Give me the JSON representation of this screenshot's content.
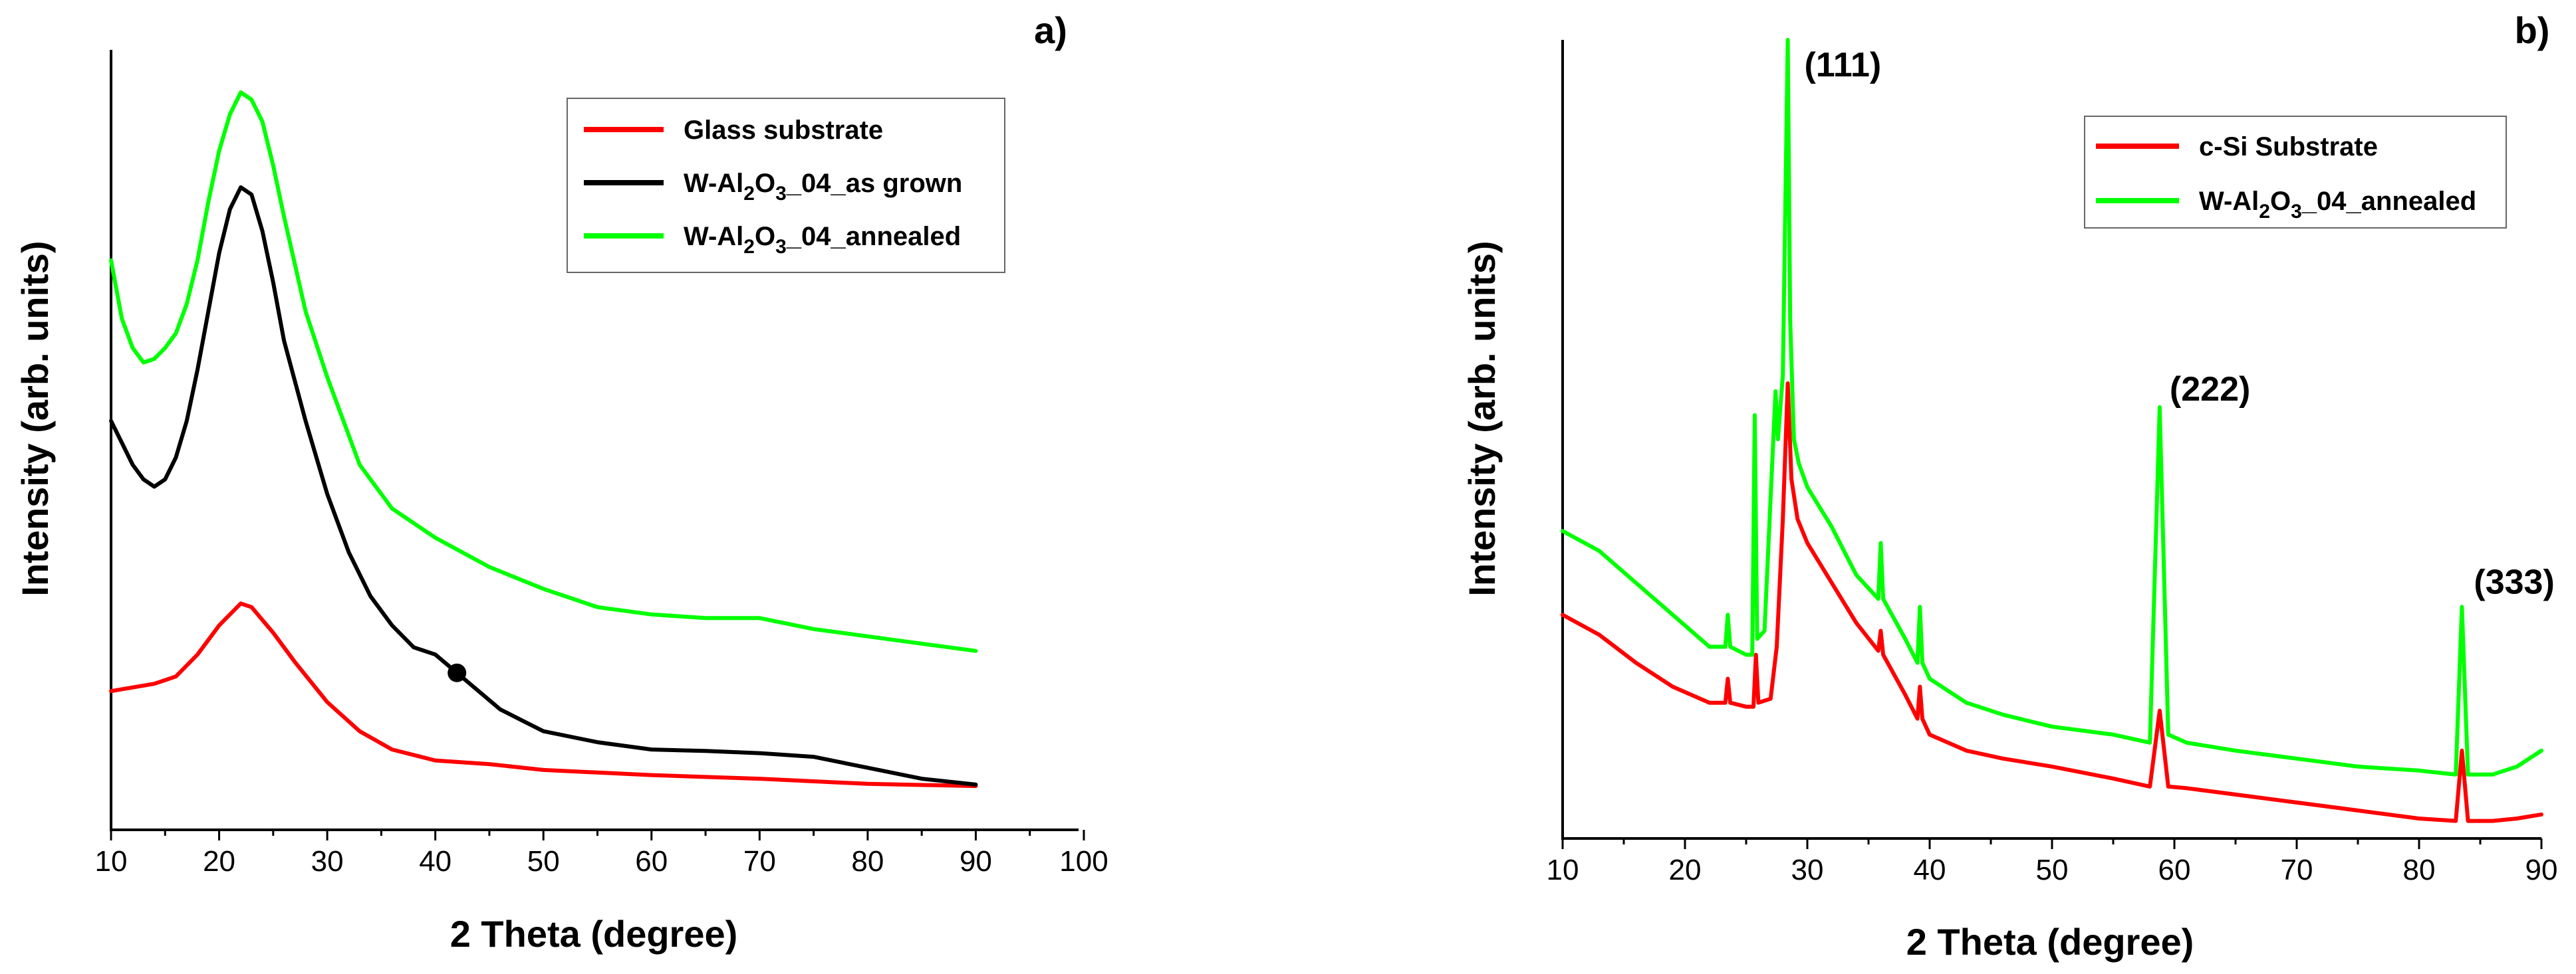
{
  "chart_data": [
    {
      "type": "line",
      "panel_label": "a)",
      "xlabel": "2 Theta (degree)",
      "ylabel": "Intensity (arb. units)",
      "xlim": [
        10,
        100
      ],
      "xticks": [
        10,
        20,
        30,
        40,
        50,
        60,
        70,
        80,
        90,
        100
      ],
      "ylim": [
        0,
        100
      ],
      "legend_position": "top-right",
      "series": [
        {
          "name": "Glass substrate",
          "legend": {
            "pre": "Glass substrate",
            "sub1": "",
            "mid": "",
            "sub2": "",
            "post": ""
          },
          "color": "#ff0000",
          "x": [
            10,
            12,
            14,
            16,
            18,
            20,
            22,
            23,
            25,
            27,
            30,
            33,
            36,
            40,
            45,
            50,
            60,
            70,
            80,
            90
          ],
          "y": [
            19,
            19.5,
            20,
            21,
            24,
            28,
            31,
            30.5,
            27,
            23,
            17.5,
            13.5,
            11,
            9.5,
            9,
            8.2,
            7.5,
            7,
            6.3,
            6
          ]
        },
        {
          "name": "W-Al2O3_04_as grown",
          "legend": {
            "pre": "W-Al",
            "sub1": "2",
            "mid": "O",
            "sub2": "3",
            "post": "_04_as grown"
          },
          "color": "#000000",
          "x": [
            10,
            11,
            12,
            13,
            14,
            15,
            16,
            17,
            18,
            19,
            20,
            21,
            22,
            23,
            24,
            25,
            26,
            28,
            30,
            32,
            34,
            36,
            38,
            40,
            42,
            44,
            46,
            48,
            50,
            55,
            60,
            65,
            70,
            75,
            80,
            85,
            90
          ],
          "y": [
            56,
            53,
            50,
            48,
            47,
            48,
            51,
            56,
            63,
            71,
            79,
            85,
            88,
            87,
            82,
            75,
            67,
            56,
            46,
            38,
            32,
            28,
            25,
            24,
            21.5,
            19,
            16.5,
            15,
            13.5,
            12,
            11,
            10.8,
            10.5,
            10,
            8.5,
            7,
            6.2
          ]
        },
        {
          "name": "W-Al2O3_04_annealed",
          "legend": {
            "pre": "W-Al",
            "sub1": "2",
            "mid": "O",
            "sub2": "3",
            "post": "_04_annealed"
          },
          "color": "#00ff00",
          "x": [
            10,
            11,
            12,
            13,
            14,
            15,
            16,
            17,
            18,
            19,
            20,
            21,
            22,
            23,
            24,
            25,
            26,
            28,
            30,
            33,
            36,
            40,
            45,
            50,
            55,
            60,
            65,
            70,
            75,
            80,
            85,
            90
          ],
          "y": [
            78,
            70,
            66,
            64,
            64.5,
            66,
            68,
            72,
            78,
            86,
            93,
            98,
            101,
            100,
            97,
            91,
            84,
            71,
            62,
            50,
            44,
            40,
            36,
            33,
            30.5,
            29.5,
            29,
            29,
            27.5,
            26.5,
            25.5,
            24.5
          ]
        }
      ],
      "annotations": [
        {
          "type": "marker",
          "x": 42,
          "y": 21.5,
          "color": "#000000"
        }
      ]
    },
    {
      "type": "line",
      "panel_label": "b)",
      "xlabel": "2 Theta (degree)",
      "ylabel": "Intensity (arb. units)",
      "xlim": [
        10,
        90
      ],
      "xticks": [
        10,
        20,
        30,
        40,
        50,
        60,
        70,
        80,
        90
      ],
      "ylim": [
        0,
        100
      ],
      "legend_position": "top-right",
      "series": [
        {
          "name": "c-Si Substrate",
          "legend": {
            "pre": "c-Si Substrate",
            "sub1": "",
            "mid": "",
            "sub2": "",
            "post": ""
          },
          "color": "#ff0000",
          "x": [
            10,
            13,
            16,
            19,
            22,
            23.3,
            23.5,
            23.7,
            25,
            25.6,
            25.8,
            26,
            27,
            27.5,
            28,
            28.4,
            28.7,
            29.2,
            30,
            32,
            34,
            35.8,
            36,
            36.2,
            38,
            39,
            39.2,
            39.4,
            40,
            43,
            46,
            50,
            55,
            58,
            58.8,
            59.5,
            61,
            65,
            70,
            75,
            80,
            83,
            83.5,
            84,
            86,
            88,
            90
          ],
          "y": [
            28,
            25.5,
            22,
            19,
            17,
            17,
            20,
            17,
            16.5,
            16.5,
            23,
            17,
            17.5,
            24,
            40,
            57,
            45,
            40,
            37,
            32,
            27,
            23.5,
            26,
            23,
            18,
            15,
            19,
            15,
            13,
            11,
            10,
            9,
            7.5,
            6.5,
            16,
            6.5,
            6.3,
            5.5,
            4.5,
            3.5,
            2.5,
            2.2,
            11,
            2.2,
            2.2,
            2.5,
            3
          ]
        },
        {
          "name": "W-Al2O3_04_annealed",
          "legend": {
            "pre": "W-Al",
            "sub1": "2",
            "mid": "O",
            "sub2": "3",
            "post": "_04_annealed"
          },
          "color": "#00ff00",
          "x": [
            10,
            13,
            16,
            19,
            22,
            23.3,
            23.5,
            23.7,
            25,
            25.5,
            25.7,
            25.9,
            26.5,
            27.4,
            27.6,
            28,
            28.4,
            28.6,
            28.9,
            29.3,
            30,
            32,
            34,
            35.8,
            36,
            36.2,
            38,
            39,
            39.2,
            39.4,
            40,
            43,
            46,
            50,
            55,
            58,
            58.8,
            59.5,
            61,
            65,
            70,
            75,
            80,
            83,
            83.5,
            84,
            86,
            88,
            90
          ],
          "y": [
            38.5,
            36,
            32,
            28,
            24,
            24,
            28,
            24,
            23,
            23,
            53,
            25,
            26,
            56,
            50,
            58,
            100,
            65,
            50,
            47,
            44,
            39,
            33,
            30,
            37,
            30,
            25,
            22,
            29,
            22,
            20,
            17,
            15.5,
            14,
            13,
            12,
            54,
            13,
            12,
            11,
            10,
            9,
            8.5,
            8,
            29,
            8,
            8,
            9,
            11
          ]
        }
      ],
      "annotations": [
        {
          "type": "peak_label",
          "text": "(111)",
          "x": 28.4
        },
        {
          "type": "peak_label",
          "text": "(222)",
          "x": 58.8
        },
        {
          "type": "peak_label",
          "text": "(333)",
          "x": 83.5
        }
      ]
    }
  ]
}
